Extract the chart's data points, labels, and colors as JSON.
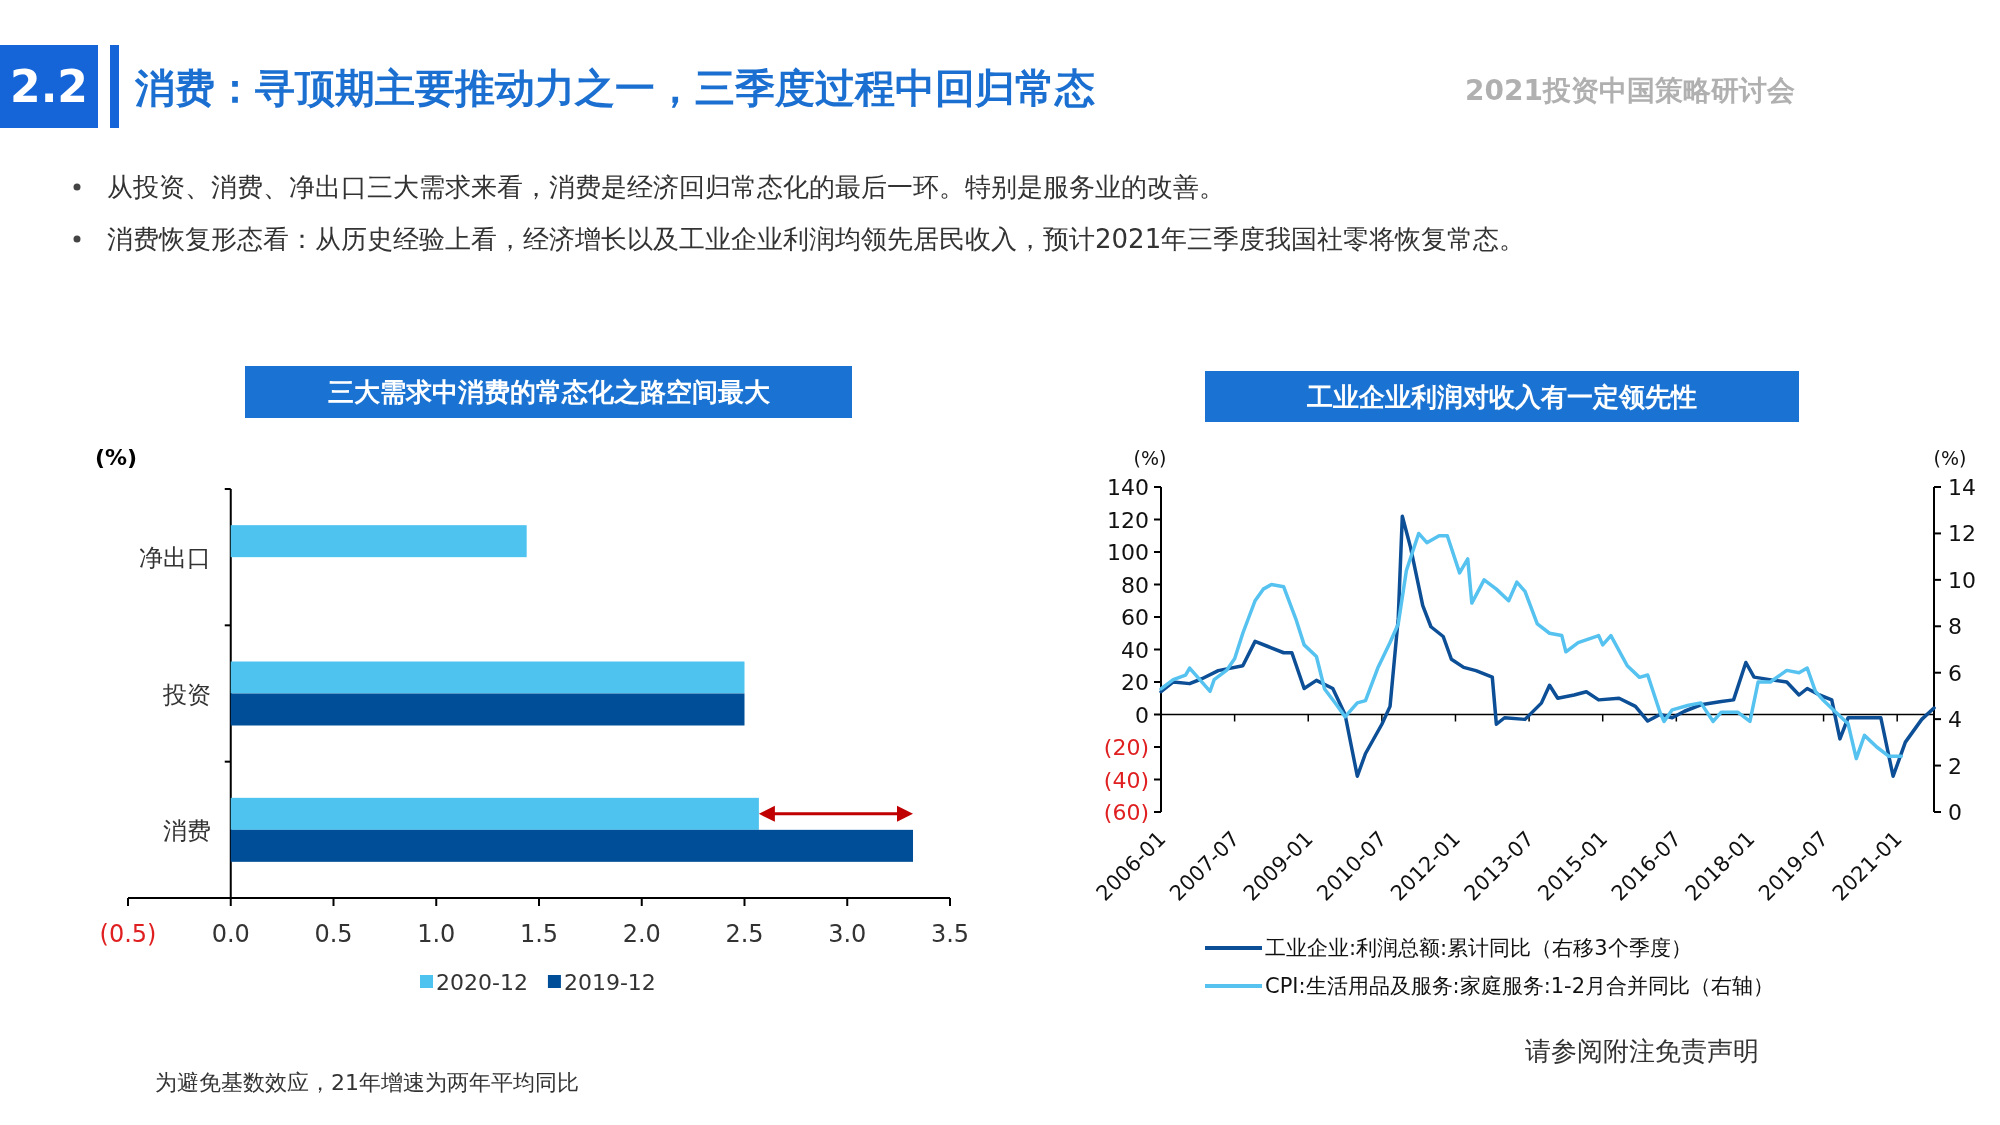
{
  "chart_data": [
    {
      "type": "other",
      "title": "消费：寻顶期主要推动力之一，三季度过程中回归常态",
      "annotations": [
        "2.2",
        "2021投资中国策略研讨会",
        "从投资、消费、净出口三大需求来看，消费是经济回归常态化的最后一环。特别是服务业的改善。",
        "消费恢复形态看：从历史经验上看，经济增长以及工业企业利润均领先居民收入，预计2021年三季度我国社零将恢复常态。",
        "为避免基数效应，21年增速为两年平均同比",
        "请参阅附注免责声明"
      ]
    },
    {
      "type": "bar",
      "orientation": "horizontal",
      "title": "三大需求中消费的常态化之路空间最大",
      "xlabel": "(%)",
      "categories": [
        "净出口",
        "投资",
        "消费"
      ],
      "series": [
        {
          "name": "2020-12",
          "color": "#4fc3f0",
          "values": [
            1.44,
            2.5,
            2.57
          ]
        },
        {
          "name": "2019-12",
          "color": "#004e98",
          "values": [
            null,
            2.5,
            3.32
          ]
        }
      ],
      "xlim": [
        -0.5,
        3.5
      ],
      "xticks": [
        {
          "value": -0.5,
          "label": "(0.5)"
        },
        {
          "value": 0,
          "label": "0.0"
        },
        {
          "value": 0.5,
          "label": "0.5"
        },
        {
          "value": 1,
          "label": "1.0"
        },
        {
          "value": 1.5,
          "label": "1.5"
        },
        {
          "value": 2,
          "label": "2.0"
        },
        {
          "value": 2.5,
          "label": "2.5"
        },
        {
          "value": 3,
          "label": "3.0"
        },
        {
          "value": 3.5,
          "label": "3.5"
        }
      ],
      "legend": "bottom"
    },
    {
      "type": "line",
      "title": "工业企业利润对收入有一定领先性",
      "ylabel": "(%)",
      "y2label": "(%)",
      "series": [
        {
          "name": "工业企业:利润总额:累计同比（右移3个季度）",
          "color": "#0d4f96",
          "x": [
            "2006-01",
            "2006-04",
            "2006-08",
            "2006-11",
            "2007-03",
            "2007-09",
            "2007-12",
            "2008-03",
            "2008-07",
            "2008-09",
            "2008-12",
            "2009-03",
            "2009-07",
            "2009-10",
            "2010-01",
            "2010-03",
            "2010-07",
            "2010-09",
            "2010-11",
            "2010-12",
            "2011-02",
            "2011-05",
            "2011-07",
            "2011-10",
            "2011-12",
            "2012-03",
            "2012-06",
            "2012-10",
            "2012-11",
            "2013-01",
            "2013-06",
            "2013-10",
            "2013-12",
            "2014-02",
            "2014-06",
            "2014-09",
            "2014-12",
            "2015-05",
            "2015-09",
            "2015-12",
            "2016-03",
            "2016-06",
            "2016-09",
            "2017-01",
            "2017-06",
            "2017-09",
            "2017-12",
            "2018-02",
            "2018-07",
            "2018-10",
            "2019-01",
            "2019-03",
            "2019-06",
            "2019-09",
            "2019-11",
            "2020-01",
            "2020-04",
            "2020-09",
            "2020-12",
            "2021-03",
            "2021-07",
            "2021-10"
          ],
          "values": [
            14,
            20,
            19,
            22,
            27,
            30,
            45,
            42,
            38,
            38,
            16,
            21,
            16,
            0,
            -38,
            -24,
            -6,
            5,
            59,
            122,
            103,
            67,
            54,
            48,
            34,
            29,
            27,
            23,
            -6,
            -2,
            -3,
            7,
            18,
            10,
            12,
            14,
            9,
            10,
            5,
            -4,
            0,
            -2,
            2,
            6,
            8,
            9,
            32,
            23,
            21,
            20,
            12,
            16,
            12,
            9,
            -15,
            -2,
            -2,
            -2,
            -38,
            -17,
            -3,
            4
          ]
        },
        {
          "name": "CPI:生活用品及服务:家庭服务:1-2月合并同比（右轴）",
          "color": "#56c2f0",
          "axis": "y2",
          "x": [
            "2006-01",
            "2006-04",
            "2006-07",
            "2006-08",
            "2006-10",
            "2007-01",
            "2007-02",
            "2007-05",
            "2007-07",
            "2007-09",
            "2007-12",
            "2008-02",
            "2008-04",
            "2008-07",
            "2008-10",
            "2008-12",
            "2009-03",
            "2009-05",
            "2009-08",
            "2009-10",
            "2010-01",
            "2010-03",
            "2010-06",
            "2010-09",
            "2010-11",
            "2011-01",
            "2011-04",
            "2011-06",
            "2011-09",
            "2011-11",
            "2012-02",
            "2012-04",
            "2012-05",
            "2012-08",
            "2012-11",
            "2013-02",
            "2013-04",
            "2013-06",
            "2013-09",
            "2013-12",
            "2014-03",
            "2014-04",
            "2014-07",
            "2014-12",
            "2015-01",
            "2015-03",
            "2015-07",
            "2015-10",
            "2015-12",
            "2016-03",
            "2016-04",
            "2016-06",
            "2016-10",
            "2017-01",
            "2017-04",
            "2017-06",
            "2017-10",
            "2018-01",
            "2018-03",
            "2018-06",
            "2018-10",
            "2019-01",
            "2019-03",
            "2019-05",
            "2019-07",
            "2019-10",
            "2020-01",
            "2020-03",
            "2020-05",
            "2020-08",
            "2020-11",
            "2021-02"
          ],
          "values": [
            5.3,
            5.7,
            5.9,
            6.2,
            5.8,
            5.2,
            5.7,
            6.1,
            6.6,
            7.7,
            9.1,
            9.6,
            9.8,
            9.7,
            8.3,
            7.2,
            6.7,
            5.3,
            4.6,
            4.1,
            4.7,
            4.8,
            6.2,
            7.3,
            8.1,
            10.4,
            12.0,
            11.6,
            11.9,
            11.9,
            10.3,
            10.9,
            9.0,
            10.0,
            9.6,
            9.1,
            9.9,
            9.5,
            8.1,
            7.7,
            7.6,
            6.9,
            7.3,
            7.6,
            7.2,
            7.6,
            6.3,
            5.8,
            5.9,
            4.3,
            3.9,
            4.4,
            4.6,
            4.7,
            3.9,
            4.3,
            4.3,
            3.9,
            5.6,
            5.6,
            6.1,
            6.0,
            6.2,
            5.2,
            4.8,
            4.3,
            3.8,
            2.3,
            3.3,
            2.8,
            2.4,
            2.4
          ]
        }
      ],
      "xlim": [
        "2006-01",
        "2021-10"
      ],
      "xticks": [
        "2006-01",
        "2007-07",
        "2009-01",
        "2010-07",
        "2012-01",
        "2013-07",
        "2015-01",
        "2016-07",
        "2018-01",
        "2019-07",
        "2021-01"
      ],
      "ylim": [
        -60,
        140
      ],
      "yticks": [
        {
          "value": -60,
          "label": "(60)"
        },
        {
          "value": -40,
          "label": "(40)"
        },
        {
          "value": -20,
          "label": "(20)"
        },
        0,
        20,
        40,
        60,
        80,
        100,
        120,
        140
      ],
      "y2lim": [
        0,
        14
      ],
      "y2ticks": [
        0,
        2,
        4,
        6,
        8,
        10,
        12,
        14
      ],
      "legend": "bottom"
    }
  ]
}
